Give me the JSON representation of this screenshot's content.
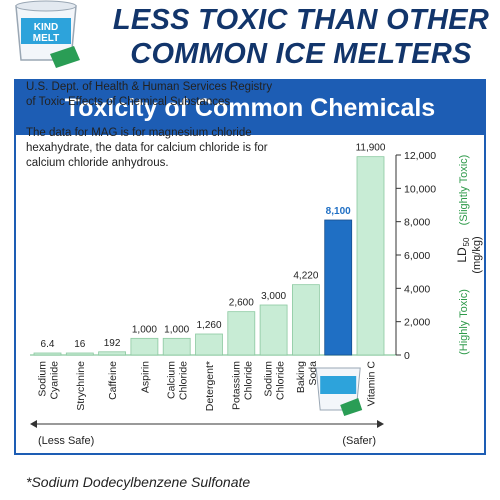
{
  "header": {
    "line1": "LESS TOXIC THAN OTHER",
    "line2": "COMMON ICE MELTERS"
  },
  "product_brand": "KIND MELT",
  "panel": {
    "title": "Toxicity of Common Chemicals",
    "source_text": "U.S. Dept. of Health & Human Services Registry of Toxic Effects of Chemical Substances",
    "note_text": "The data for MAG is for magnesium chloride hexahydrate, the data for calcium chloride is for calcium chloride anhydrous."
  },
  "footnote": "*Sodium Dodecylbenzene Sulfonate",
  "colors": {
    "heading": "#12356b",
    "panel_blue": "#1d5db4",
    "bar_green": "#c8ecd5",
    "bar_green_edge": "#8cc9a1",
    "highlight_bar": "#1f6fc4",
    "axis_label_green": "#2e9a4a"
  },
  "chart_data": {
    "type": "bar",
    "categories": [
      "Sodium Cyanide",
      "Strychnine",
      "Caffeine",
      "Aspirin",
      "Calcium Chloride",
      "Detergent*",
      "Potassium Chloride",
      "Sodium Chloride",
      "Baking Soda",
      "",
      "Vitamin C"
    ],
    "values": [
      6.4,
      16,
      192,
      1000,
      1000,
      1260,
      2600,
      3000,
      4220,
      8100,
      11900
    ],
    "value_labels": [
      "6.4",
      "16",
      "192",
      "1,000",
      "1,000",
      "1,260",
      "2,600",
      "3,000",
      "4,220",
      "8,100",
      "11,900"
    ],
    "highlight_index": 9,
    "ylim": [
      0,
      12000
    ],
    "yticks": [
      0,
      2000,
      4000,
      6000,
      8000,
      10000,
      12000
    ],
    "ytick_labels": [
      "0",
      "2,000",
      "4,000",
      "6,000",
      "8,000",
      "10,000",
      "12,000"
    ],
    "ylabel": "LD50 (mg/kg)",
    "ylabel_main": "LD",
    "ylabel_sub": "50",
    "ylabel_units": "(mg/kg)",
    "axis_top_label": "(Slightly Toxic)",
    "axis_bottom_label": "(Highly Toxic)",
    "range_left_label": "(Less Safe)",
    "range_right_label": "(Safer)"
  }
}
